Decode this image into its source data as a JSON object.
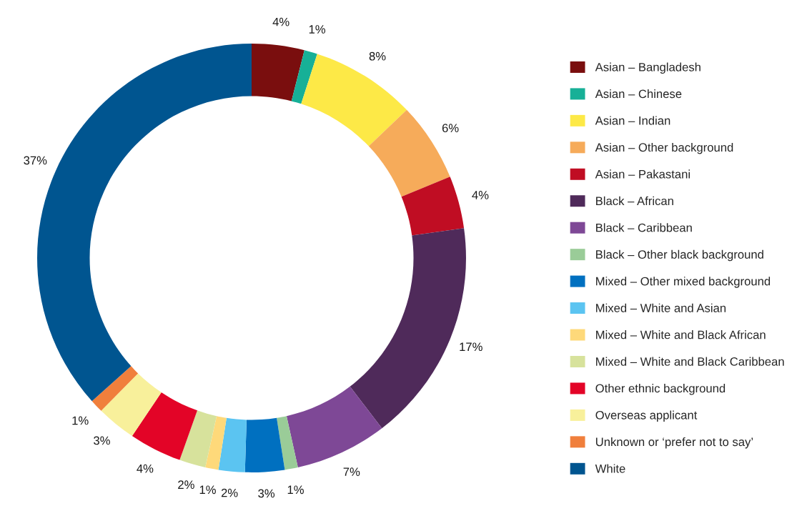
{
  "chart_data": {
    "type": "donut",
    "categories": [
      "Asian – Bangladesh",
      "Asian – Chinese",
      "Asian – Indian",
      "Asian – Other background",
      "Asian – Pakastani",
      "Black – African",
      "Black – Caribbean",
      "Black – Other black background",
      "Mixed – Other mixed background",
      "Mixed – White and Asian",
      "Mixed – White and Black African",
      "Mixed – White and Black Caribbean",
      "Other ethnic background",
      "Overseas applicant",
      "Unknown or ‘prefer not to say’",
      "White"
    ],
    "values": [
      4,
      1,
      8,
      6,
      4,
      17,
      7,
      1,
      3,
      2,
      1,
      2,
      4,
      3,
      1,
      37
    ],
    "value_labels": [
      "4%",
      "1%",
      "8%",
      "6%",
      "4%",
      "17%",
      "7%",
      "1%",
      "3%",
      "2%",
      "1%",
      "2%",
      "4%",
      "3%",
      "1%",
      "37%"
    ],
    "colors": [
      "#7a0e0e",
      "#17b097",
      "#fde947",
      "#f6ab5a",
      "#c00d23",
      "#4f2a5a",
      "#7e4896",
      "#9acc98",
      "#0070c0",
      "#5bc4f1",
      "#fed97a",
      "#d7e29c",
      "#e30427",
      "#f8f09b",
      "#f07f3c",
      "#005590"
    ],
    "legend": "right"
  }
}
